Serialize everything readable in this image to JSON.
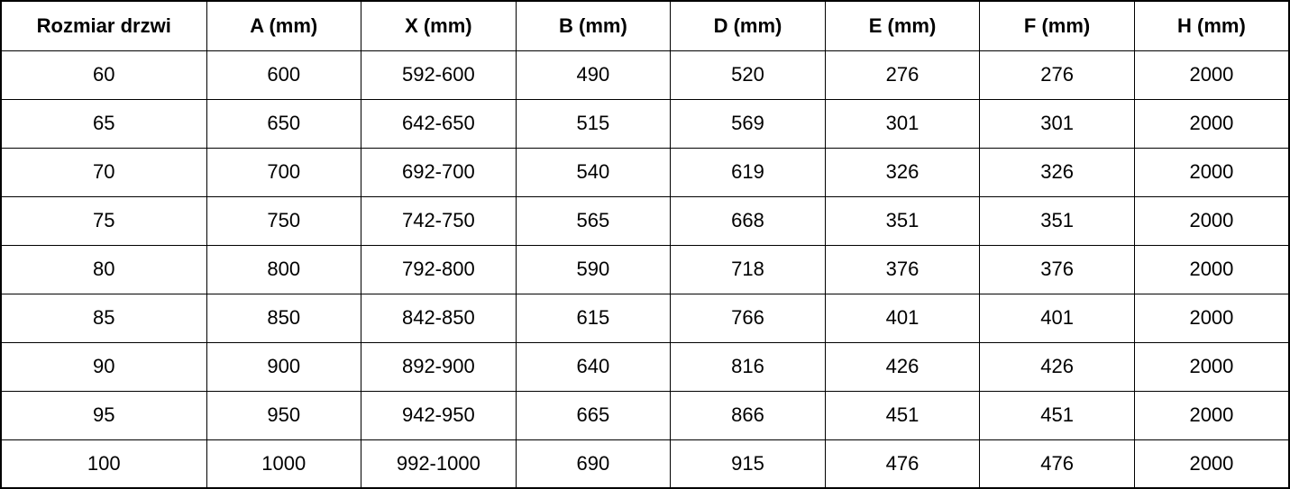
{
  "colors": {
    "border": "#000000",
    "text": "#000000",
    "background": "#ffffff"
  },
  "chart_data": {
    "type": "table",
    "title": "",
    "columns": [
      "Rozmiar drzwi",
      "A (mm)",
      "X (mm)",
      "B (mm)",
      "D (mm)",
      "E (mm)",
      "F (mm)",
      "H (mm)"
    ],
    "rows": [
      [
        "60",
        "600",
        "592-600",
        "490",
        "520",
        "276",
        "276",
        "2000"
      ],
      [
        "65",
        "650",
        "642-650",
        "515",
        "569",
        "301",
        "301",
        "2000"
      ],
      [
        "70",
        "700",
        "692-700",
        "540",
        "619",
        "326",
        "326",
        "2000"
      ],
      [
        "75",
        "750",
        "742-750",
        "565",
        "668",
        "351",
        "351",
        "2000"
      ],
      [
        "80",
        "800",
        "792-800",
        "590",
        "718",
        "376",
        "376",
        "2000"
      ],
      [
        "85",
        "850",
        "842-850",
        "615",
        "766",
        "401",
        "401",
        "2000"
      ],
      [
        "90",
        "900",
        "892-900",
        "640",
        "816",
        "426",
        "426",
        "2000"
      ],
      [
        "95",
        "950",
        "942-950",
        "665",
        "866",
        "451",
        "451",
        "2000"
      ],
      [
        "100",
        "1000",
        "992-1000",
        "690",
        "915",
        "476",
        "476",
        "2000"
      ]
    ],
    "layout": {
      "grid": true,
      "header_row_bold": true,
      "cell_alignment": "center",
      "first_column_wider": true
    }
  }
}
